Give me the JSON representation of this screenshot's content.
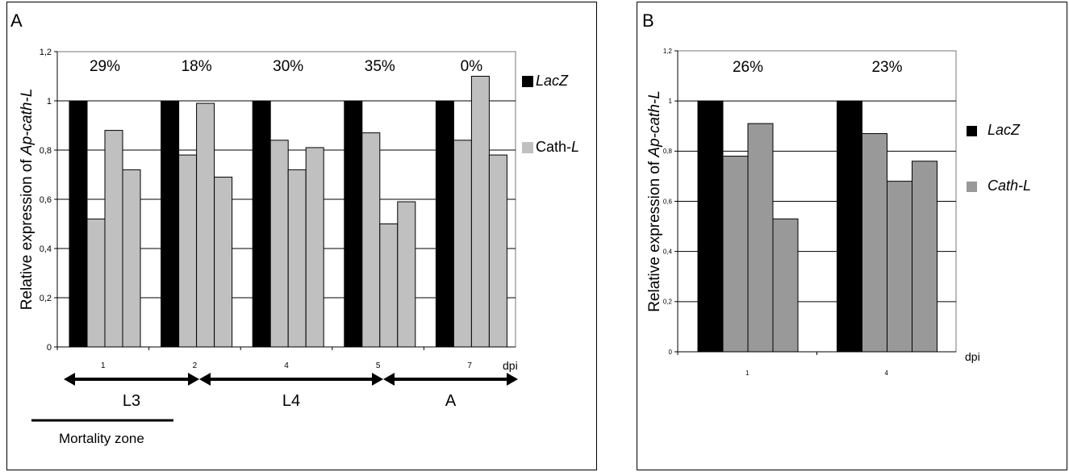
{
  "panels": [
    {
      "letter": "A",
      "chart_data": {
        "type": "bar",
        "ylabel_prefix": "Relative expression of ",
        "ylabel_gene": "Ap-cath-L",
        "xunit": "dpi",
        "ylim": [
          0,
          1.2
        ],
        "yticks": [
          "0",
          "0,2",
          "0,4",
          "0,6",
          "0,8",
          "1",
          "1,2"
        ],
        "categories": [
          "1",
          "2",
          "4",
          "5",
          "7"
        ],
        "groups": [
          {
            "label": "1",
            "percent": "29%",
            "lacz": 1.0,
            "cath": [
              0.52,
              0.88,
              0.72
            ]
          },
          {
            "label": "2",
            "percent": "18%",
            "lacz": 1.0,
            "cath": [
              0.78,
              0.99,
              0.69
            ]
          },
          {
            "label": "4",
            "percent": "30%",
            "lacz": 1.0,
            "cath": [
              0.84,
              0.72,
              0.81
            ]
          },
          {
            "label": "5",
            "percent": "35%",
            "lacz": 1.0,
            "cath": [
              0.87,
              0.5,
              0.59
            ]
          },
          {
            "label": "7",
            "percent": "0%",
            "lacz": 1.0,
            "cath": [
              0.84,
              1.1,
              0.78
            ]
          }
        ],
        "legend": [
          {
            "prefix": "",
            "italic": "LacZ",
            "suffix": "",
            "color": "#000000"
          },
          {
            "prefix": "Cath-",
            "italic": "L",
            "suffix": "",
            "color": "#c0c0c0"
          }
        ],
        "stages": [
          "L3",
          "L4",
          "A"
        ],
        "mortality_label": "Mortality zone",
        "colors": {
          "lacz": "#000000",
          "cath": "#c0c0c0"
        },
        "grid": true
      }
    },
    {
      "letter": "B",
      "chart_data": {
        "type": "bar",
        "ylabel_prefix": "Relative expression of ",
        "ylabel_gene": "Ap-cath-L",
        "xunit": "dpi",
        "ylim": [
          0,
          1.2
        ],
        "yticks": [
          "0",
          "0,2",
          "0,4",
          "0,6",
          "0,8",
          "1",
          "1,2"
        ],
        "categories": [
          "1",
          "4"
        ],
        "groups": [
          {
            "label": "1",
            "percent": "26%",
            "lacz": 1.0,
            "cath": [
              0.78,
              0.91,
              0.53
            ]
          },
          {
            "label": "4",
            "percent": "23%",
            "lacz": 1.0,
            "cath": [
              0.87,
              0.68,
              0.76
            ]
          }
        ],
        "legend": [
          {
            "prefix": "",
            "italic": "LacZ",
            "suffix": "",
            "color": "#000000"
          },
          {
            "prefix": "",
            "italic": "Cath-L",
            "suffix": "",
            "color": "#999999"
          }
        ],
        "colors": {
          "lacz": "#000000",
          "cath": "#999999"
        },
        "grid": true
      }
    }
  ]
}
